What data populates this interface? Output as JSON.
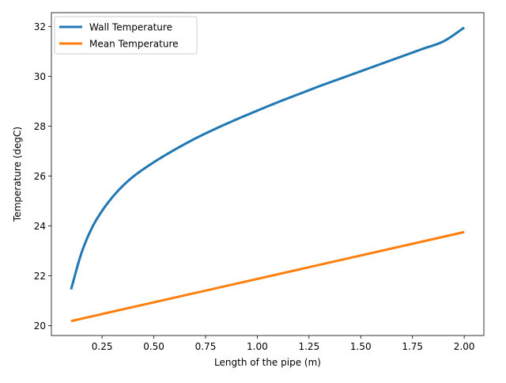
{
  "chart_data": {
    "type": "line",
    "title": "",
    "xlabel": "Length of the pipe (m)",
    "ylabel": "Temperature (degC)",
    "xlim": [
      0.005,
      2.095
    ],
    "ylim": [
      19.6,
      32.55
    ],
    "x_ticks": [
      0.25,
      0.5,
      0.75,
      1.0,
      1.25,
      1.5,
      1.75,
      2.0
    ],
    "x_tick_labels": [
      "0.25",
      "0.50",
      "0.75",
      "1.00",
      "1.25",
      "1.50",
      "1.75",
      "2.00"
    ],
    "y_ticks": [
      20,
      22,
      24,
      26,
      28,
      30,
      32
    ],
    "y_tick_labels": [
      "20",
      "22",
      "24",
      "26",
      "28",
      "30",
      "32"
    ],
    "grid": false,
    "legend_position": "upper-left",
    "series": [
      {
        "name": "Wall Temperature",
        "color": "#1f77b4",
        "x": [
          0.1,
          0.15,
          0.2,
          0.25,
          0.3,
          0.35,
          0.4,
          0.5,
          0.6,
          0.7,
          0.8,
          0.9,
          1.0,
          1.1,
          1.2,
          1.3,
          1.4,
          1.5,
          1.6,
          1.7,
          1.8,
          1.9,
          2.0
        ],
        "y": [
          21.45,
          22.9,
          23.9,
          24.6,
          25.15,
          25.6,
          25.97,
          26.55,
          27.05,
          27.5,
          27.9,
          28.27,
          28.62,
          28.96,
          29.28,
          29.6,
          29.9,
          30.2,
          30.5,
          30.8,
          31.1,
          31.4,
          31.95
        ]
      },
      {
        "name": "Mean Temperature",
        "color": "#ff7f0e",
        "x": [
          0.1,
          2.0
        ],
        "y": [
          20.18,
          23.75
        ]
      }
    ]
  }
}
